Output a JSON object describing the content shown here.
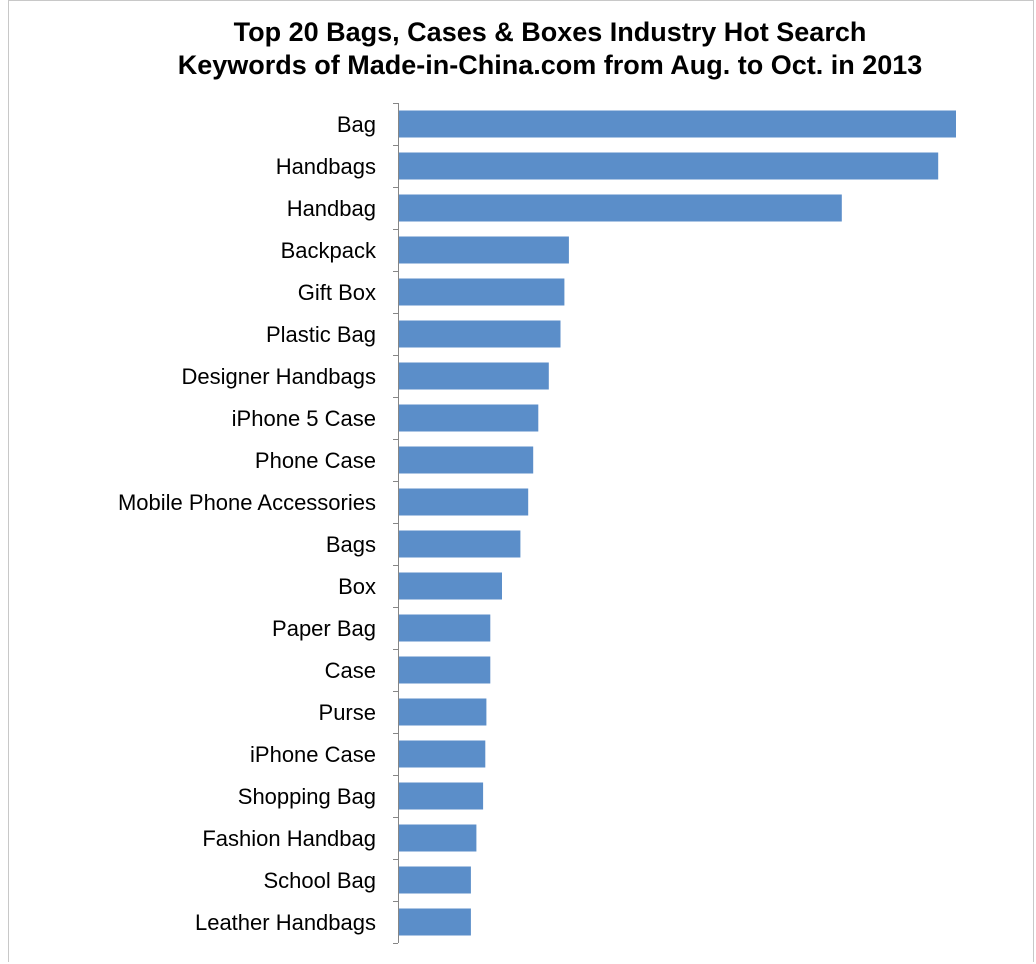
{
  "chart_data": {
    "type": "bar",
    "orientation": "horizontal",
    "title_line1": "Top 20 Bags, Cases & Boxes Industry Hot Search",
    "title_line2": "Keywords of Made-in-China.com from Aug. to Oct. in 2013",
    "xlabel": "",
    "ylabel": "",
    "grid": false,
    "legend": "none",
    "bar_color": "#5b8ec9",
    "xlim": [
      0,
      100
    ],
    "categories": [
      "Bag",
      "Handbags",
      "Handbag",
      "Backpack",
      "Gift Box",
      "Plastic Bag",
      "Designer Handbags",
      "iPhone 5 Case",
      "Phone Case",
      "Mobile Phone Accessories",
      "Bags",
      "Box",
      "Paper Bag",
      "Case",
      "Purse",
      "iPhone Case",
      "Shopping Bag",
      "Fashion Handbag",
      "School Bag",
      "Leather Handbags"
    ],
    "values": [
      100,
      96.8,
      79.5,
      30.5,
      29.7,
      29.0,
      26.9,
      25.0,
      24.1,
      23.2,
      21.8,
      18.5,
      16.4,
      16.4,
      15.7,
      15.5,
      15.1,
      13.9,
      12.9,
      12.9
    ]
  }
}
